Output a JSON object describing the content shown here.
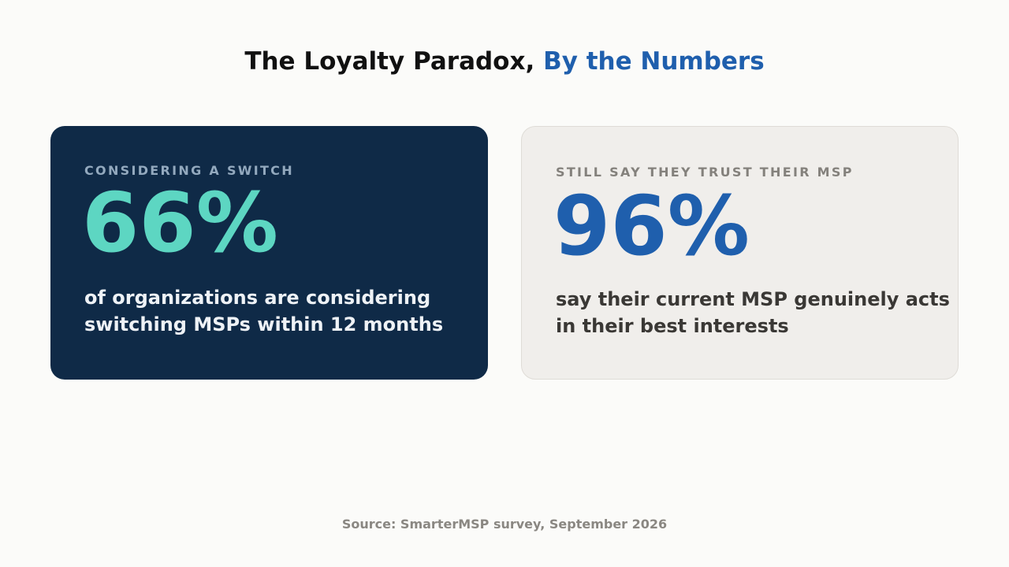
{
  "slide": {
    "title_main": "The Loyalty Paradox, ",
    "title_accent": "By the Numbers"
  },
  "cards": [
    {
      "eyebrow": "CONSIDERING A SWITCH",
      "stat": "66%",
      "description": "of organizations are considering switching MSPs within 12 months"
    },
    {
      "eyebrow": "STILL SAY THEY TRUST THEIR MSP",
      "stat": "96%",
      "description": "say their current MSP genuinely acts in their best interests"
    }
  ],
  "source": "Source: SmarterMSP survey, September 2026",
  "colors": {
    "background": "#fbfbf9",
    "title": "#111111",
    "accent_blue": "#1f5fad",
    "dark_card": "#0f2a47",
    "teal": "#5dd6c2",
    "light_card": "#f0eeeb",
    "source_text": "#8a8782"
  }
}
